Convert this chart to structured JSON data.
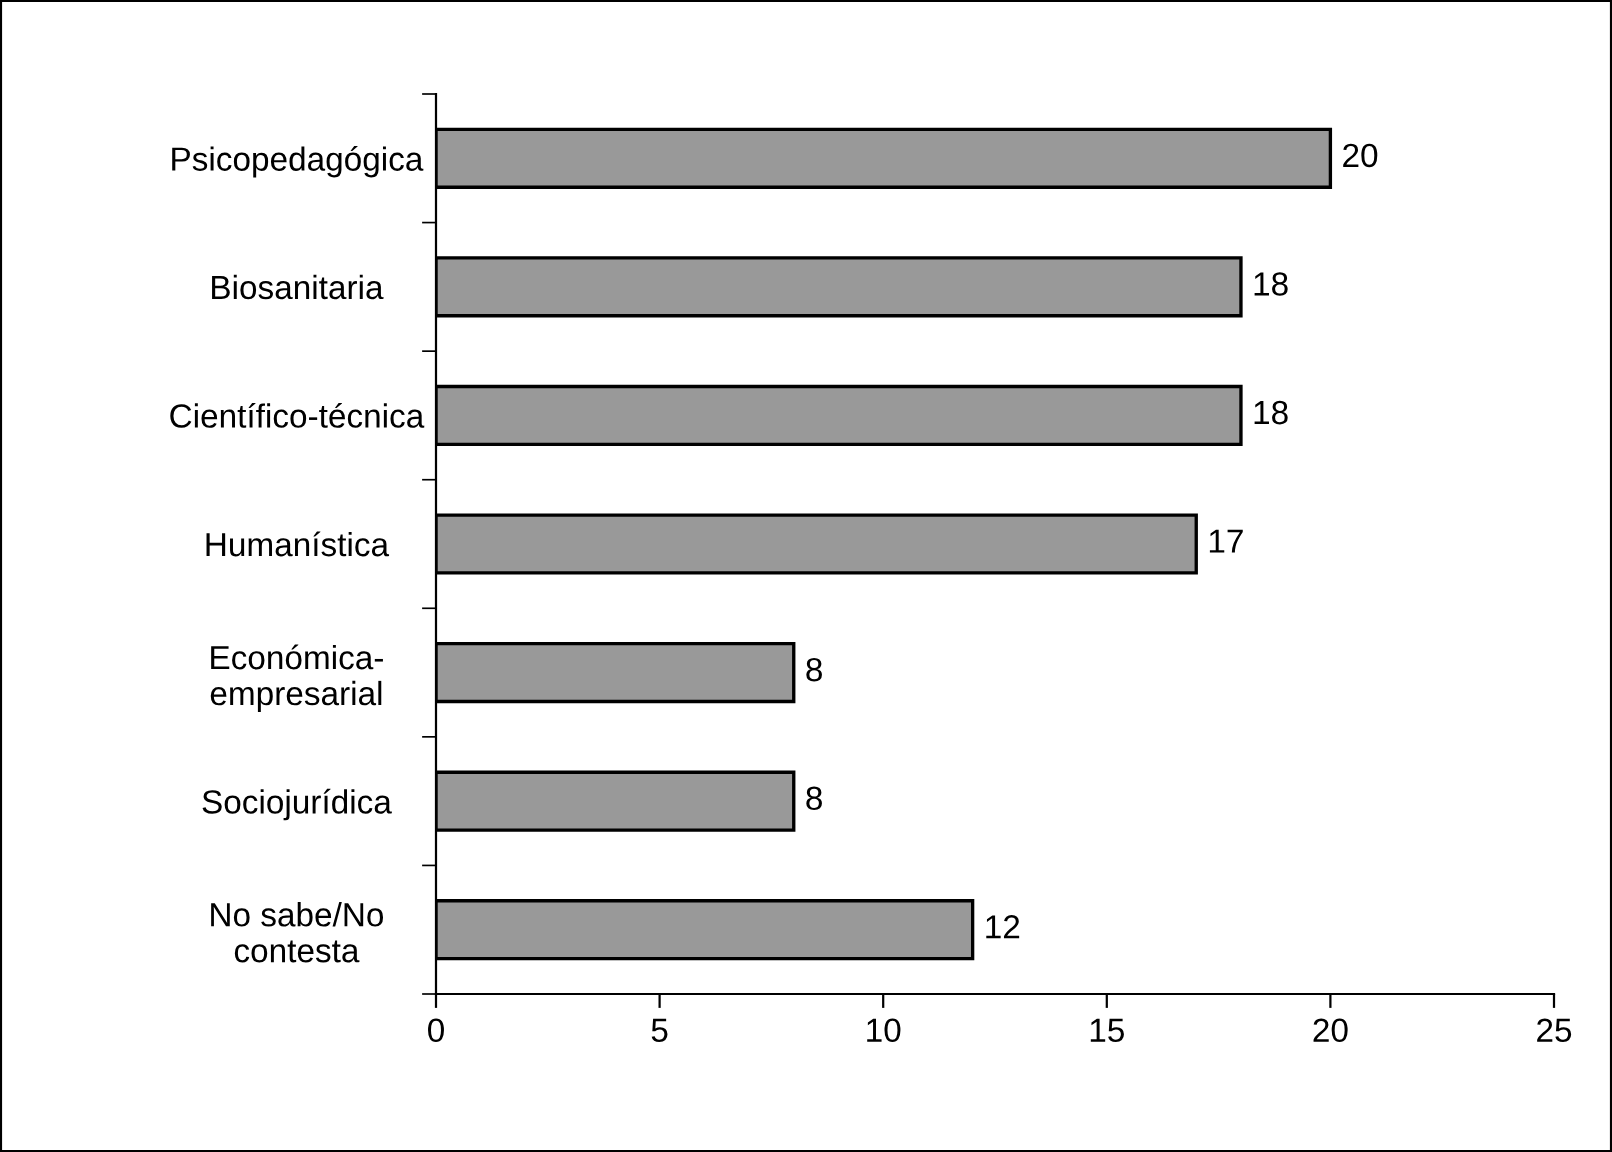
{
  "chart_data": {
    "type": "bar",
    "orientation": "horizontal",
    "categories": [
      "Psicopedagógica",
      "Biosanitaria",
      "Científico-técnica",
      "Humanística",
      "Económica-\nempresarial",
      "Sociojurídica",
      "No sabe/No\ncontesta"
    ],
    "values": [
      20,
      18,
      18,
      17,
      8,
      8,
      12
    ],
    "color": "#999999",
    "xlim": [
      0,
      25
    ],
    "xticks": [
      0,
      5,
      10,
      15,
      20,
      25
    ],
    "data_labels": true,
    "grid": false,
    "legend": false
  }
}
